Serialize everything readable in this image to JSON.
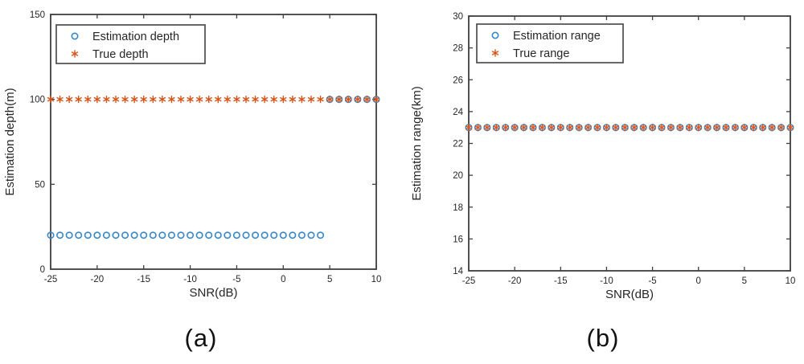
{
  "page": {
    "background": "#ffffff"
  },
  "style": {
    "axis_color": "#3f3f3f",
    "tick_label_color": "#262626",
    "legend_border_color": "#4d4d4d",
    "legend_background": "#ffffff"
  },
  "chart_data": [
    {
      "id": "a",
      "type": "scatter",
      "caption": "(a)",
      "title": "",
      "xlabel": "SNR(dB)",
      "ylabel": "Estimation depth(m)",
      "xlim": [
        -25,
        10
      ],
      "ylim": [
        0,
        150
      ],
      "xticks": [
        -25,
        -20,
        -15,
        -10,
        -5,
        0,
        5,
        10
      ],
      "yticks": [
        0,
        50,
        100,
        150
      ],
      "grid": false,
      "legend_position": "top-left",
      "x": [
        -25,
        -24,
        -23,
        -22,
        -21,
        -20,
        -19,
        -18,
        -17,
        -16,
        -15,
        -14,
        -13,
        -12,
        -11,
        -10,
        -9,
        -8,
        -7,
        -6,
        -5,
        -4,
        -3,
        -2,
        -1,
        0,
        1,
        2,
        3,
        4,
        5,
        6,
        7,
        8,
        9,
        10
      ],
      "series": [
        {
          "name": "Estimation depth",
          "marker": "circle",
          "color": "#3787C8",
          "values": [
            20,
            20,
            20,
            20,
            20,
            20,
            20,
            20,
            20,
            20,
            20,
            20,
            20,
            20,
            20,
            20,
            20,
            20,
            20,
            20,
            20,
            20,
            20,
            20,
            20,
            20,
            20,
            20,
            20,
            20,
            100,
            100,
            100,
            100,
            100,
            100
          ]
        },
        {
          "name": "True depth",
          "marker": "asterisk",
          "color": "#D95319",
          "values": [
            100,
            100,
            100,
            100,
            100,
            100,
            100,
            100,
            100,
            100,
            100,
            100,
            100,
            100,
            100,
            100,
            100,
            100,
            100,
            100,
            100,
            100,
            100,
            100,
            100,
            100,
            100,
            100,
            100,
            100,
            100,
            100,
            100,
            100,
            100,
            100
          ]
        }
      ]
    },
    {
      "id": "b",
      "type": "scatter",
      "caption": "(b)",
      "title": "",
      "xlabel": "SNR(dB)",
      "ylabel": "Estimation range(km)",
      "xlim": [
        -25,
        10
      ],
      "ylim": [
        14,
        30
      ],
      "xticks": [
        -25,
        -20,
        -15,
        -10,
        -5,
        0,
        5,
        10
      ],
      "yticks": [
        14,
        16,
        18,
        20,
        22,
        24,
        26,
        28,
        30
      ],
      "grid": false,
      "legend_position": "top-left",
      "x": [
        -25,
        -24,
        -23,
        -22,
        -21,
        -20,
        -19,
        -18,
        -17,
        -16,
        -15,
        -14,
        -13,
        -12,
        -11,
        -10,
        -9,
        -8,
        -7,
        -6,
        -5,
        -4,
        -3,
        -2,
        -1,
        0,
        1,
        2,
        3,
        4,
        5,
        6,
        7,
        8,
        9,
        10
      ],
      "series": [
        {
          "name": "Estimation range",
          "marker": "circle",
          "color": "#3787C8",
          "values": [
            23,
            23,
            23,
            23,
            23,
            23,
            23,
            23,
            23,
            23,
            23,
            23,
            23,
            23,
            23,
            23,
            23,
            23,
            23,
            23,
            23,
            23,
            23,
            23,
            23,
            23,
            23,
            23,
            23,
            23,
            23,
            23,
            23,
            23,
            23,
            23
          ]
        },
        {
          "name": "True range",
          "marker": "asterisk",
          "color": "#D95319",
          "values": [
            23,
            23,
            23,
            23,
            23,
            23,
            23,
            23,
            23,
            23,
            23,
            23,
            23,
            23,
            23,
            23,
            23,
            23,
            23,
            23,
            23,
            23,
            23,
            23,
            23,
            23,
            23,
            23,
            23,
            23,
            23,
            23,
            23,
            23,
            23,
            23
          ]
        }
      ]
    }
  ]
}
